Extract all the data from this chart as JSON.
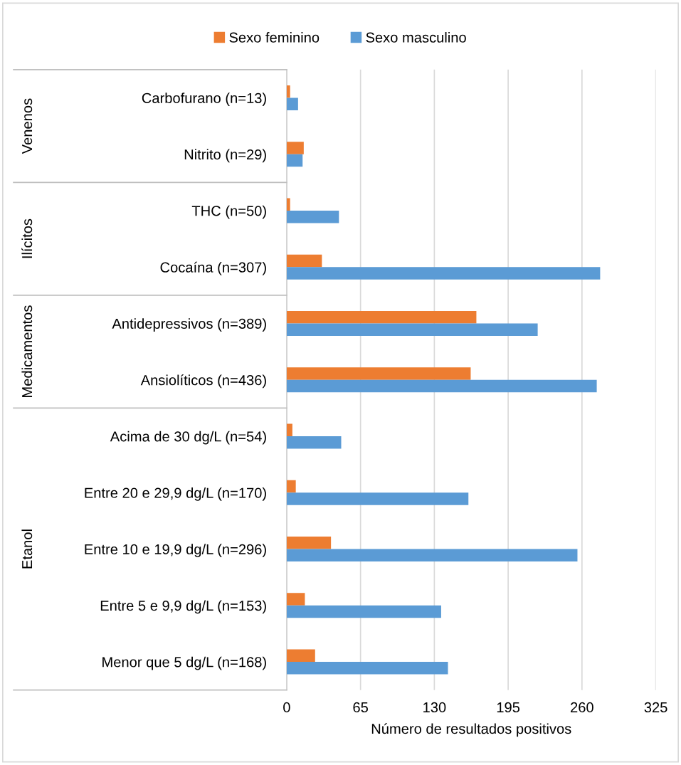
{
  "chart_data": {
    "type": "bar",
    "orientation": "horizontal",
    "categories": [
      "Carbofurano (n=13)",
      "Nitrito (n=29)",
      "THC (n=50)",
      "Cocaína (n=307)",
      "Antidepressivos (n=389)",
      "Ansiolíticos (n=436)",
      "Acima de 30 dg/L (n=54)",
      "Entre 20 e 29,9 dg/L (n=170)",
      "Entre 10 e 19,9 dg/L (n=296)",
      "Entre 5 e 9,9 dg/L (n=153)",
      "Menor que 5 dg/L (n=168)"
    ],
    "series": [
      {
        "name": "Sexo feminino",
        "color": "#ed7d31",
        "values": [
          3,
          15,
          3,
          31,
          167,
          162,
          5,
          8,
          39,
          16,
          25
        ]
      },
      {
        "name": "Sexo masculino",
        "color": "#5b9bd5",
        "values": [
          10,
          14,
          46,
          276,
          221,
          273,
          48,
          160,
          256,
          136,
          142
        ]
      }
    ],
    "xlabel": "Número de resultados positivos",
    "xlim": [
      0,
      325
    ],
    "xticks": [
      0,
      65,
      130,
      195,
      260,
      325
    ],
    "grid": "x",
    "legend": "top",
    "annotations": [
      "Venenos",
      "Ilícitos",
      "Medicamentos",
      "Etanol"
    ]
  }
}
